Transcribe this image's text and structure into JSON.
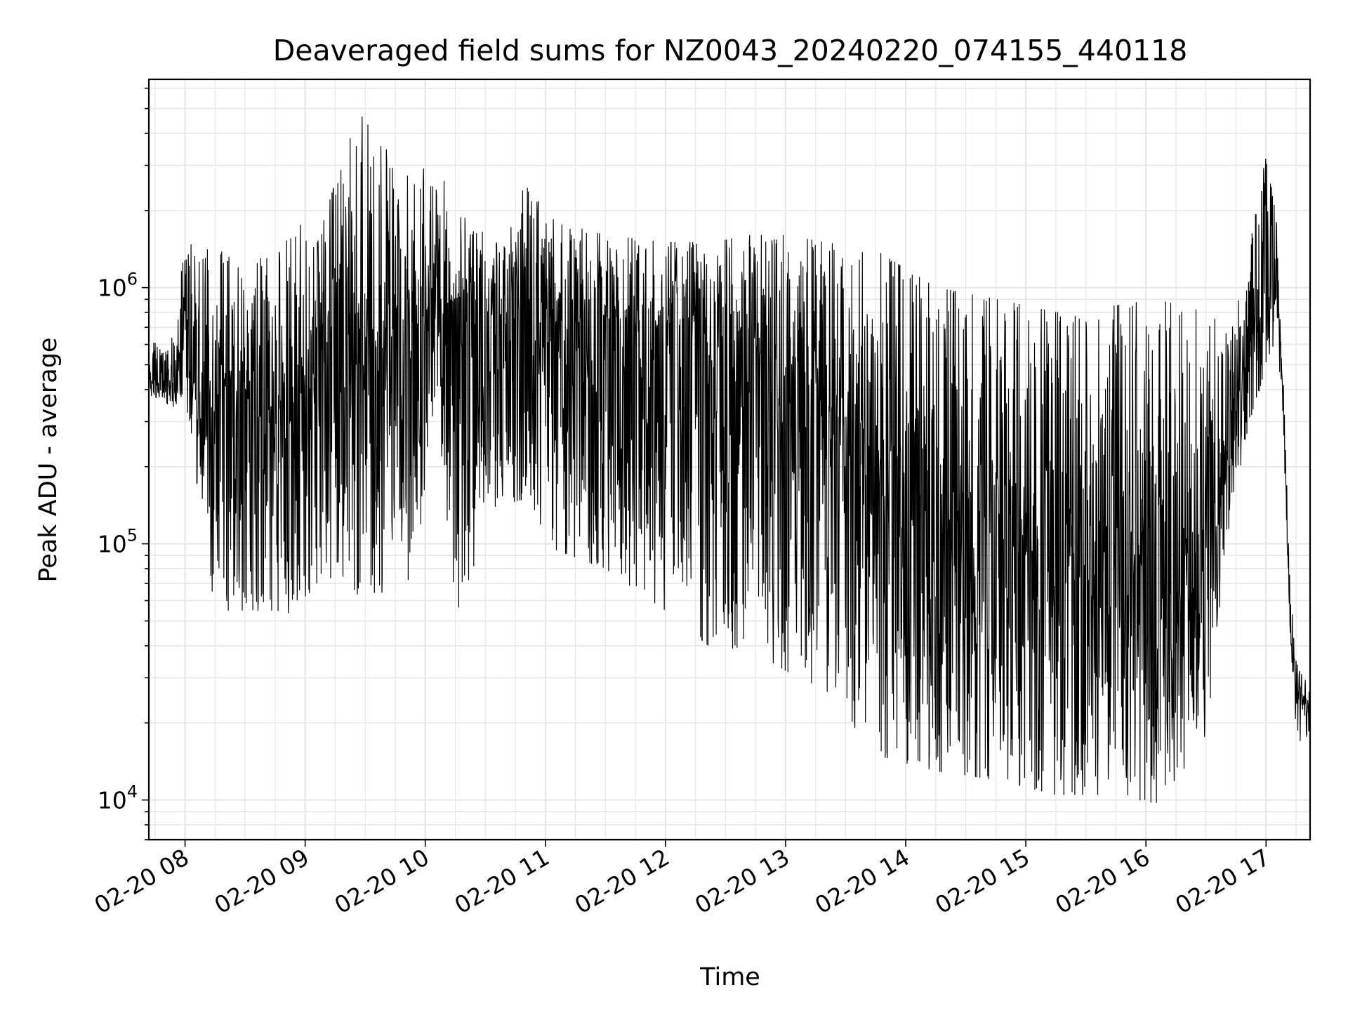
{
  "chart_data": {
    "type": "line",
    "title": "Deaveraged field sums for NZ0043_20240220_074155_440118",
    "xlabel": "Time",
    "ylabel": "Peak ADU - average",
    "yscale": "log",
    "xlim": [
      "2024-02-20T07:41:55",
      "2024-02-20T17:22:00"
    ],
    "ylim": [
      7000,
      6500000
    ],
    "grid": true,
    "line_color": "#000000",
    "grid_color": "#e6e6e6",
    "x_ticks": [
      {
        "value": "2024-02-20T08:00:00",
        "label": "02-20 08"
      },
      {
        "value": "2024-02-20T09:00:00",
        "label": "02-20 09"
      },
      {
        "value": "2024-02-20T10:00:00",
        "label": "02-20 10"
      },
      {
        "value": "2024-02-20T11:00:00",
        "label": "02-20 11"
      },
      {
        "value": "2024-02-20T12:00:00",
        "label": "02-20 12"
      },
      {
        "value": "2024-02-20T13:00:00",
        "label": "02-20 13"
      },
      {
        "value": "2024-02-20T14:00:00",
        "label": "02-20 14"
      },
      {
        "value": "2024-02-20T15:00:00",
        "label": "02-20 15"
      },
      {
        "value": "2024-02-20T16:00:00",
        "label": "02-20 16"
      },
      {
        "value": "2024-02-20T17:00:00",
        "label": "02-20 17"
      }
    ],
    "y_ticks": [
      {
        "value": 10000,
        "base": "10",
        "exp": "4"
      },
      {
        "value": 100000,
        "base": "10",
        "exp": "5"
      },
      {
        "value": 1000000,
        "base": "10",
        "exp": "6"
      }
    ],
    "series": [
      {
        "envelope": [
          {
            "t": "2024-02-20T07:42:00",
            "median": 450000,
            "high": 600000,
            "low": 380000
          },
          {
            "t": "2024-02-20T07:55:00",
            "median": 420000,
            "high": 650000,
            "low": 340000
          },
          {
            "t": "2024-02-20T08:00:00",
            "median": 800000,
            "high": 1600000,
            "low": 400000
          },
          {
            "t": "2024-02-20T08:05:00",
            "median": 600000,
            "high": 1500000,
            "low": 180000
          },
          {
            "t": "2024-02-20T08:15:00",
            "median": 450000,
            "high": 1400000,
            "low": 55000
          },
          {
            "t": "2024-02-20T08:30:00",
            "median": 400000,
            "high": 1300000,
            "low": 55000
          },
          {
            "t": "2024-02-20T08:45:00",
            "median": 350000,
            "high": 1300000,
            "low": 55000
          },
          {
            "t": "2024-02-20T08:55:00",
            "median": 300000,
            "high": 1900000,
            "low": 52000
          },
          {
            "t": "2024-02-20T09:05:00",
            "median": 550000,
            "high": 1400000,
            "low": 70000
          },
          {
            "t": "2024-02-20T09:20:00",
            "median": 600000,
            "high": 3500000,
            "low": 75000
          },
          {
            "t": "2024-02-20T09:27:00",
            "median": 650000,
            "high": 4800000,
            "low": 62000
          },
          {
            "t": "2024-02-20T09:40:00",
            "median": 650000,
            "high": 3500000,
            "low": 65000
          },
          {
            "t": "2024-02-20T09:55:00",
            "median": 700000,
            "high": 2500000,
            "low": 75000
          },
          {
            "t": "2024-02-20T10:05:00",
            "median": 1000000,
            "high": 3600000,
            "low": 400000
          },
          {
            "t": "2024-02-20T10:15:00",
            "median": 850000,
            "high": 2000000,
            "low": 52000
          },
          {
            "t": "2024-02-20T10:35:00",
            "median": 750000,
            "high": 1500000,
            "low": 140000
          },
          {
            "t": "2024-02-20T10:50:00",
            "median": 850000,
            "high": 2500000,
            "low": 150000
          },
          {
            "t": "2024-02-20T11:05:00",
            "median": 750000,
            "high": 1800000,
            "low": 95000
          },
          {
            "t": "2024-02-20T11:30:00",
            "median": 700000,
            "high": 1600000,
            "low": 80000
          },
          {
            "t": "2024-02-20T12:00:00",
            "median": 700000,
            "high": 1500000,
            "low": 55000
          },
          {
            "t": "2024-02-20T12:25:00",
            "median": 650000,
            "high": 1500000,
            "low": 38000
          },
          {
            "t": "2024-02-20T12:40:00",
            "median": 600000,
            "high": 1600000,
            "low": 40000
          },
          {
            "t": "2024-02-20T13:00:00",
            "median": 500000,
            "high": 1600000,
            "low": 32000
          },
          {
            "t": "2024-02-20T13:20:00",
            "median": 400000,
            "high": 1500000,
            "low": 27000
          },
          {
            "t": "2024-02-20T13:45:00",
            "median": 250000,
            "high": 1400000,
            "low": 15000
          },
          {
            "t": "2024-02-20T14:15:00",
            "median": 180000,
            "high": 1000000,
            "low": 13000
          },
          {
            "t": "2024-02-20T14:45:00",
            "median": 130000,
            "high": 900000,
            "low": 12000
          },
          {
            "t": "2024-02-20T15:15:00",
            "median": 100000,
            "high": 800000,
            "low": 10500
          },
          {
            "t": "2024-02-20T15:45:00",
            "median": 90000,
            "high": 850000,
            "low": 10500
          },
          {
            "t": "2024-02-20T16:05:00",
            "median": 80000,
            "high": 900000,
            "low": 9700
          },
          {
            "t": "2024-02-20T16:30:00",
            "median": 80000,
            "high": 800000,
            "low": 17000
          },
          {
            "t": "2024-02-20T16:40:00",
            "median": 250000,
            "high": 700000,
            "low": 100000
          },
          {
            "t": "2024-02-20T16:50:00",
            "median": 550000,
            "high": 1200000,
            "low": 250000
          },
          {
            "t": "2024-02-20T17:00:00",
            "median": 900000,
            "high": 3300000,
            "low": 500000
          },
          {
            "t": "2024-02-20T17:05:00",
            "median": 1000000,
            "high": 2000000,
            "low": 600000
          },
          {
            "t": "2024-02-20T17:08:00",
            "median": 500000,
            "high": 600000,
            "low": 400000
          },
          {
            "t": "2024-02-20T17:12:00",
            "median": 60000,
            "high": 80000,
            "low": 45000
          },
          {
            "t": "2024-02-20T17:15:00",
            "median": 25000,
            "high": 35000,
            "low": 14000
          },
          {
            "t": "2024-02-20T17:22:00",
            "median": 22000,
            "high": 27000,
            "low": 17000
          }
        ]
      }
    ]
  }
}
